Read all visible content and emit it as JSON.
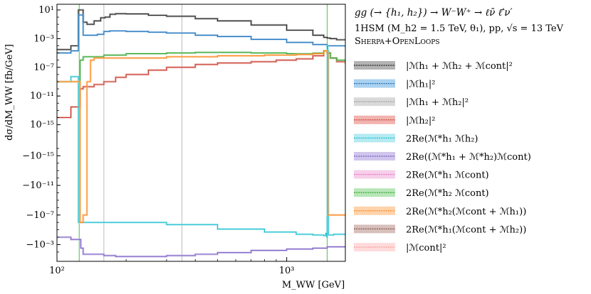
{
  "chart_data": {
    "type": "line",
    "title": "gg (→ {h₁, h₂}) → W⁻W⁺ → ℓν̄ ℓ̄′ν′",
    "subtitle_line1": "1HSM (M_h2 = 1.5 TeV, θ₁),  pp,  √s = 13 TeV",
    "subtitle_line2": "Sherpa+OpenLoops",
    "xlabel": "M_WW [GeV]",
    "ylabel": "dσ/dM_WW  [fb/GeV]",
    "xscale": "log",
    "yscale": "symlog",
    "xlim": [
      100,
      1800
    ],
    "x_ticks": [
      {
        "value": 100,
        "label": "10²"
      },
      {
        "value": 1000,
        "label": "10³"
      }
    ],
    "y_ticks": [
      {
        "value": 10,
        "label": "10¹"
      },
      {
        "value": 0.001,
        "label": "10⁻³"
      },
      {
        "value": 1e-07,
        "label": "10⁻⁷"
      },
      {
        "value": 1e-11,
        "label": "10⁻¹¹"
      },
      {
        "value": 1e-15,
        "label": "10⁻¹⁵"
      },
      {
        "value": -1e-15,
        "label": "−10⁻¹⁵"
      },
      {
        "value": -1e-11,
        "label": "−10⁻¹¹"
      },
      {
        "value": -1e-07,
        "label": "−10⁻⁷"
      },
      {
        "value": -0.001,
        "label": "−10⁻³"
      }
    ],
    "vertical_lines": [
      {
        "x": 125,
        "color": "#4cc24c"
      },
      {
        "x": 160,
        "color": "#bbbbbb"
      },
      {
        "x": 350,
        "color": "#bbbbbb"
      },
      {
        "x": 1500,
        "color": "#4cc24c"
      }
    ],
    "series": [
      {
        "name": "|M_h1 + M_h2 + M_cont|²",
        "color": "#222222",
        "band": "#999999",
        "x": [
          100,
          115,
          122,
          124,
          126,
          130,
          135,
          145,
          155,
          162,
          170,
          180,
          200,
          250,
          300,
          400,
          500,
          700,
          1000,
          1300,
          1450,
          1500,
          1550,
          1650,
          1800
        ],
        "y": [
          3e-05,
          0.0001,
          0.0001,
          10,
          10,
          0.2,
          0.1,
          0.3,
          0.8,
          1.0,
          2.5,
          3.0,
          2.8,
          1.8,
          1.3,
          0.6,
          0.3,
          0.08,
          0.015,
          0.003,
          0.0015,
          0.0012,
          0.001,
          0.0007,
          0.0005
        ]
      },
      {
        "name": "|M_h1|²",
        "color": "#1f6fb8",
        "band": "#8ec1ea",
        "x": [
          100,
          115,
          122,
          124,
          126,
          130,
          140,
          150,
          160,
          170,
          200,
          250,
          300,
          400,
          500,
          700,
          1000,
          1300,
          1500,
          1800
        ],
        "y": [
          1e-05,
          2e-05,
          2e-05,
          2,
          2,
          0.003,
          0.003,
          0.004,
          0.01,
          0.012,
          0.01,
          0.008,
          0.006,
          0.003,
          0.002,
          0.0008,
          0.0003,
          0.00015,
          0.0001,
          6e-05
        ]
      },
      {
        "name": "|M_h1 + M_h2|²",
        "color": "#999999",
        "band": "#cccccc",
        "x": [
          100,
          1800
        ],
        "y": [
          null,
          null
        ]
      },
      {
        "name": "|M_h2|²",
        "color": "#c0392b",
        "band": "#ee9a94",
        "x": [
          100,
          105,
          115,
          122,
          126,
          130,
          135,
          145,
          160,
          180,
          200,
          250,
          300,
          400,
          500,
          700,
          900,
          1100,
          1300,
          1450,
          1500,
          1550,
          1650,
          1800
        ],
        "y": [
          1e-14,
          1e-14,
          3e-13,
          3e-13,
          1e-10,
          2e-10,
          2e-10,
          4e-10,
          1e-09,
          4e-09,
          1e-08,
          4e-08,
          1e-07,
          2.5e-07,
          4e-07,
          6e-07,
          1e-06,
          1.5e-06,
          4e-06,
          2e-05,
          1e-05,
          2e-06,
          6e-07,
          3e-07
        ]
      },
      {
        "name": "2Re(M*_h1 M_h2)",
        "color": "#17becf",
        "band": "#9de3ec",
        "x": [
          100,
          115,
          122,
          124,
          127,
          130,
          140,
          160,
          200,
          300,
          500,
          800,
          1100,
          1300,
          1450,
          1480,
          1495,
          1500,
          1510,
          1520,
          1600,
          1800
        ],
        "y": [
          1e-09,
          5e-09,
          5e-09,
          -1e-06,
          -1e-06,
          -1e-06,
          -1e-06,
          -1e-06,
          -1e-06,
          -2e-06,
          -8e-06,
          -2e-05,
          -4e-05,
          -5e-05,
          -6e-05,
          -3e-05,
          -0.0001,
          0.0001,
          2e-05,
          -5e-05,
          -4e-05,
          -3e-05
        ]
      },
      {
        "name": "2Re((M*_h1 + M*_h2) M_cont)",
        "color": "#7b5ec4",
        "band": "#c0b1e6",
        "x": [
          100,
          115,
          122,
          124,
          127,
          130,
          140,
          160,
          180,
          200,
          300,
          400,
          500,
          700,
          1000,
          1300,
          1500,
          1800
        ],
        "y": [
          -0.0001,
          -0.0002,
          -0.0002,
          -0.0002,
          -0.003,
          -0.02,
          -0.02,
          -0.03,
          -0.04,
          -0.04,
          -0.03,
          -0.02,
          -0.012,
          -0.006,
          -0.004,
          -0.003,
          -0.002,
          -0.0015
        ]
      },
      {
        "name": "2Re(M*_h1 M_cont)",
        "color": "#e377c2",
        "band": "#f4bfe3",
        "x": [
          100,
          1800
        ],
        "y": [
          null,
          null
        ]
      },
      {
        "name": "2Re(M*_h2 M_cont)",
        "color": "#2ca02c",
        "band": "#9fdd9f",
        "x": [
          100,
          115,
          122,
          126,
          130,
          140,
          160,
          200,
          300,
          400,
          500,
          700,
          1000,
          1300,
          1450,
          1500,
          1550,
          1650,
          1800
        ],
        "y": [
          1e-09,
          1e-09,
          1e-09,
          1e-06,
          3e-06,
          3e-06,
          5e-06,
          8e-06,
          1e-05,
          1.2e-05,
          1.2e-05,
          1e-05,
          8e-06,
          1e-05,
          2e-05,
          1e-05,
          2e-06,
          1e-06,
          6e-07
        ]
      },
      {
        "name": "2Re(M*_h2 (M_cont + M_h1))",
        "color": "#ff7f0e",
        "band": "#ffc48f",
        "x": [
          100,
          115,
          122,
          124,
          126,
          130,
          135,
          140,
          145,
          160,
          200,
          300,
          500,
          800,
          1100,
          1300,
          1450,
          1500,
          1510,
          1530,
          1550,
          1650,
          1800
        ],
        "y": [
          1e-09,
          1e-09,
          1e-09,
          1e-09,
          -1e-06,
          -1e-07,
          1e-09,
          1e-06,
          2e-06,
          2e-06,
          2e-06,
          3e-06,
          4e-06,
          5e-06,
          6e-06,
          8e-06,
          2e-05,
          1e-05,
          -1e-07,
          -1e-07,
          -1e-07,
          -1e-07,
          -1e-07
        ]
      },
      {
        "name": "2Re(M*_h1 (M_cont + M_h2))",
        "color": "#8c564b",
        "band": "#c9aba4",
        "x": [
          100,
          1800
        ],
        "y": [
          null,
          null
        ]
      },
      {
        "name": "|M_cont|²",
        "color": "#ff9a9a",
        "band": "#ffd0d0",
        "x": [
          100,
          1800
        ],
        "y": [
          null,
          null
        ]
      }
    ]
  },
  "legend_labels": [
    "|ℳh₁ + ℳh₂ + ℳcont|²",
    "|ℳh₁|²",
    "|ℳh₁ + ℳh₂|²",
    "|ℳh₂|²",
    "2Re(ℳ*h₁ ℳh₂)",
    "2Re((ℳ*h₁ + ℳ*h₂)ℳcont)",
    "2Re(ℳ*h₁ ℳcont)",
    "2Re(ℳ*h₂ ℳcont)",
    "2Re(ℳ*h₂(ℳcont + ℳh₁))",
    "2Re(ℳ*h₁(ℳcont + ℳh₂))",
    "|ℳcont|²"
  ]
}
